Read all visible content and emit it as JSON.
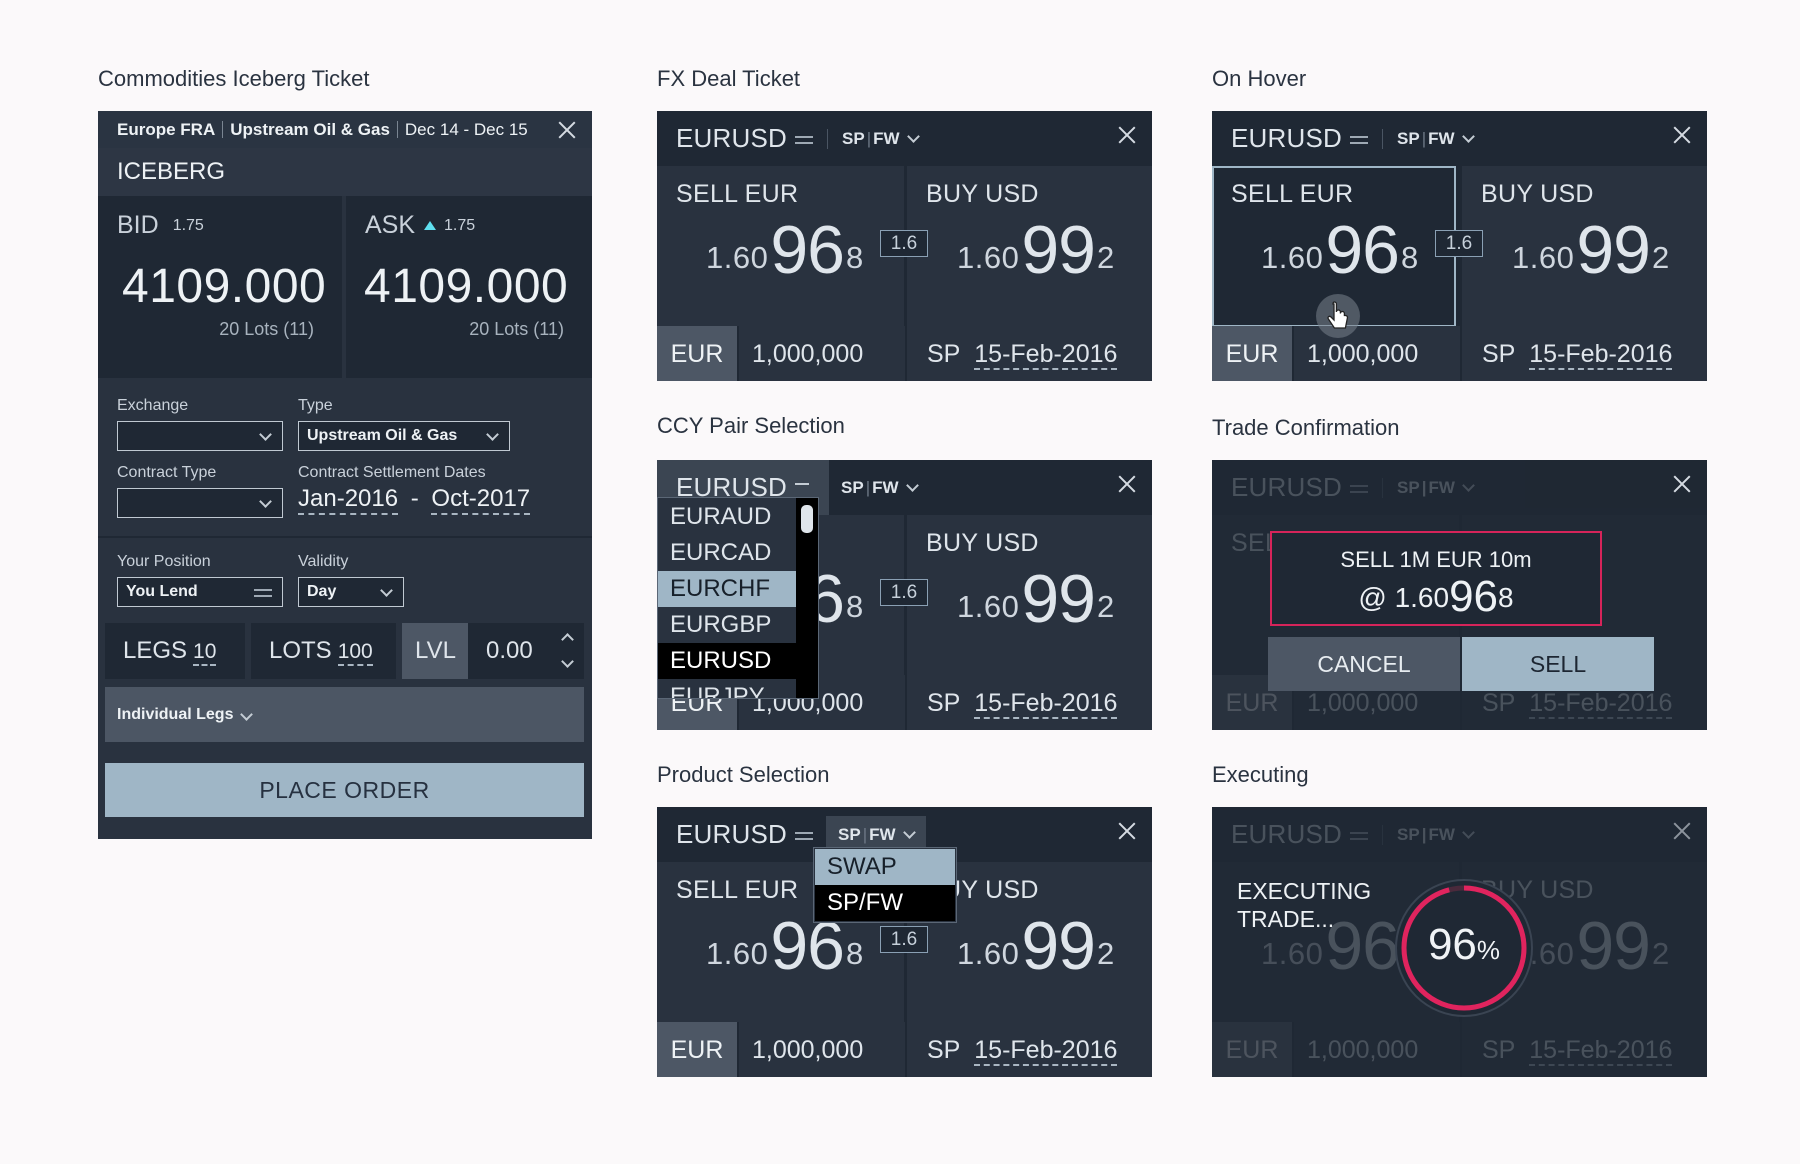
{
  "sections": {
    "iceberg": "Commodities Iceberg Ticket",
    "fx": "FX Deal Ticket",
    "hover": "On Hover",
    "ccy": "CCY Pair Selection",
    "confirm": "Trade Confirmation",
    "product": "Product Selection",
    "executing": "Executing"
  },
  "iceberg": {
    "region": "Europe FRA",
    "sector": "Upstream Oil & Gas",
    "dates": "Dec 14 - Dec 15",
    "title": "ICEBERG",
    "bid_label": "BID",
    "bid_small": "1.75",
    "bid_value": "4109.000",
    "bid_lots": "20 Lots (11)",
    "ask_label": "ASK",
    "ask_small": "1.75",
    "ask_value": "4109.000",
    "ask_lots": "20 Lots (11)",
    "exchange_label": "Exchange",
    "exchange_value": "",
    "type_label": "Type",
    "type_value": "Upstream Oil & Gas",
    "contract_type_label": "Contract Type",
    "contract_type_value": "",
    "settlement_label": "Contract Settlement Dates",
    "settle_from": "Jan-2016",
    "settle_dash": "-",
    "settle_to": "Oct-2017",
    "position_label": "Your Position",
    "position_value": "You Lend",
    "validity_label": "Validity",
    "validity_value": "Day",
    "legs_label": "LEGS",
    "legs_value": "10",
    "lots_label": "LOTS",
    "lots_value": "100",
    "lvl_label": "LVL",
    "lvl_value": "0.00",
    "individual_legs": "Individual Legs",
    "place_order": "PLACE ORDER"
  },
  "fx": {
    "pair": "EURUSD",
    "product": "SP",
    "product2": "FW",
    "sell_label": "SELL EUR",
    "buy_label": "BUY USD",
    "sell_small": "1.60",
    "sell_big": "96",
    "sell_pip": "8",
    "buy_small": "1.60",
    "buy_big": "99",
    "buy_pip": "2",
    "spread": "1.6",
    "ccy": "EUR",
    "amount": "1,000,000",
    "tenor": "SP",
    "date": "15-Feb-2016"
  },
  "ccy_list": [
    "EURAUD",
    "EURCAD",
    "EURCHF",
    "EURGBP",
    "EURUSD",
    "EURJPY"
  ],
  "product_list": [
    "SWAP",
    "SP/FW"
  ],
  "confirm": {
    "line1": "SELL 1M EUR 10m",
    "at": "@ 1.60",
    "big": "96",
    "pip": "8",
    "cancel": "CANCEL",
    "sell": "SELL"
  },
  "executing": {
    "line1": "EXECUTING",
    "line2": "TRADE...",
    "percent": "96",
    "percent_sign": "%",
    "progress": 0.96
  },
  "colors": {
    "accent": "#d6245a",
    "button": "#9fb6c6",
    "panel": "#1f2834"
  }
}
